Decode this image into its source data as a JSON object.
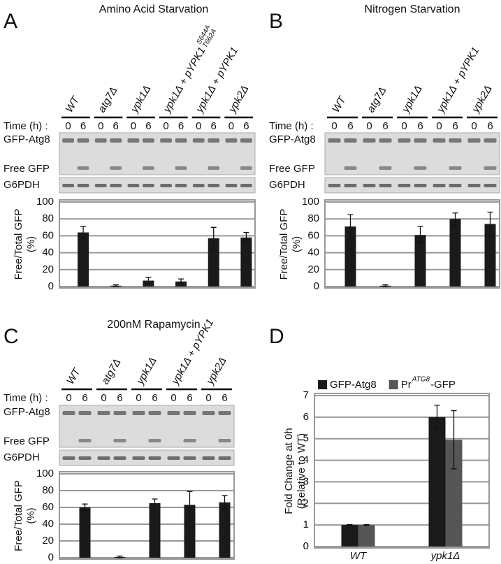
{
  "panels": [
    {
      "letter": "A",
      "title": "Amino Acid Starvation",
      "time_label": "Time (h) :",
      "times": [
        "0",
        "6"
      ],
      "blot_labels": [
        "GFP-Atg8",
        "Free GFP",
        "G6PDH"
      ],
      "strains": [
        {
          "label": "WT"
        },
        {
          "label": "atg7Δ"
        },
        {
          "label": "ypk1Δ"
        },
        {
          "label": "ypk1Δ + pYPK1",
          "sup": [
            "S644A",
            "T662A"
          ]
        },
        {
          "label": "ypk1Δ + pYPK1"
        },
        {
          "label": "ypk2Δ"
        }
      ]
    },
    {
      "letter": "B",
      "title": "Nitrogen Starvation",
      "time_label": "Time (h) :",
      "times": [
        "0",
        "6"
      ],
      "blot_labels": [
        "GFP-Atg8",
        "Free GFP",
        "G6PDH"
      ],
      "strains": [
        {
          "label": "WT"
        },
        {
          "label": "atg7Δ"
        },
        {
          "label": "ypk1Δ"
        },
        {
          "label": "ypk1Δ + pYPK1"
        },
        {
          "label": "ypk2Δ"
        }
      ]
    },
    {
      "letter": "C",
      "title": "200nM Rapamycin",
      "time_label": "Time (h) :",
      "times": [
        "0",
        "6"
      ],
      "blot_labels": [
        "GFP-Atg8",
        "Free GFP",
        "G6PDH"
      ],
      "strains": [
        {
          "label": "WT"
        },
        {
          "label": "atg7Δ"
        },
        {
          "label": "ypk1Δ"
        },
        {
          "label": "ypk1Δ + pYPK1"
        },
        {
          "label": "ypk2Δ"
        }
      ]
    },
    {
      "letter": "D"
    }
  ],
  "chart_data": [
    {
      "type": "bar",
      "y_label": [
        "Free/Total GFP",
        "(%)"
      ],
      "color": "#1a1a1a",
      "ylim": [
        0,
        100
      ],
      "yticks": [
        0,
        20,
        40,
        60,
        80,
        100
      ],
      "grid": true,
      "categories": [
        null,
        null,
        null,
        null,
        null,
        null,
        null,
        null,
        null,
        null,
        null,
        null
      ],
      "values": [
        null,
        64,
        null,
        1,
        null,
        7,
        null,
        6,
        null,
        57,
        null,
        58
      ],
      "errors": [
        null,
        7,
        null,
        1,
        null,
        4,
        null,
        3,
        null,
        13,
        null,
        6
      ]
    },
    {
      "type": "bar",
      "y_label": [
        "Free/Total GFP",
        "(%)"
      ],
      "color": "#1a1a1a",
      "ylim": [
        0,
        100
      ],
      "yticks": [
        0,
        20,
        40,
        60,
        80,
        100
      ],
      "grid": true,
      "categories": [
        null,
        null,
        null,
        null,
        null,
        null,
        null,
        null,
        null,
        null
      ],
      "values": [
        null,
        71,
        null,
        1,
        null,
        61,
        null,
        80,
        null,
        74
      ],
      "errors": [
        null,
        14,
        null,
        1,
        null,
        10,
        null,
        7,
        null,
        14
      ]
    },
    {
      "type": "bar",
      "y_label": [
        "Free/Total GFP",
        "(%)"
      ],
      "color": "#1a1a1a",
      "ylim": [
        0,
        100
      ],
      "yticks": [
        0,
        20,
        40,
        60,
        80,
        100
      ],
      "grid": true,
      "categories": [
        null,
        null,
        null,
        null,
        null,
        null,
        null,
        null,
        null,
        null
      ],
      "values": [
        null,
        60,
        null,
        1,
        null,
        65,
        null,
        63,
        null,
        66
      ],
      "errors": [
        null,
        4,
        null,
        1,
        null,
        5,
        null,
        16,
        null,
        8
      ]
    },
    {
      "type": "grouped-bar",
      "y_label": [
        "Fold Change at 0h",
        "(Relative to WT)"
      ],
      "ylim": [
        0,
        7
      ],
      "yticks": [
        0,
        1,
        2,
        3,
        4,
        5,
        6,
        7
      ],
      "grid": true,
      "categories": [
        "WT",
        "ypk1Δ"
      ],
      "series": [
        {
          "name": "GFP-Atg8",
          "color": "#1a1a1a",
          "values": [
            1,
            6
          ],
          "errors": [
            0.02,
            0.55
          ]
        },
        {
          "name": "Pr",
          "name_sup": "ATG8",
          "name_suffix": "-GFP",
          "color": "#555555",
          "values": [
            1,
            4.95
          ],
          "errors": [
            0.02,
            1.35
          ]
        }
      ]
    }
  ]
}
